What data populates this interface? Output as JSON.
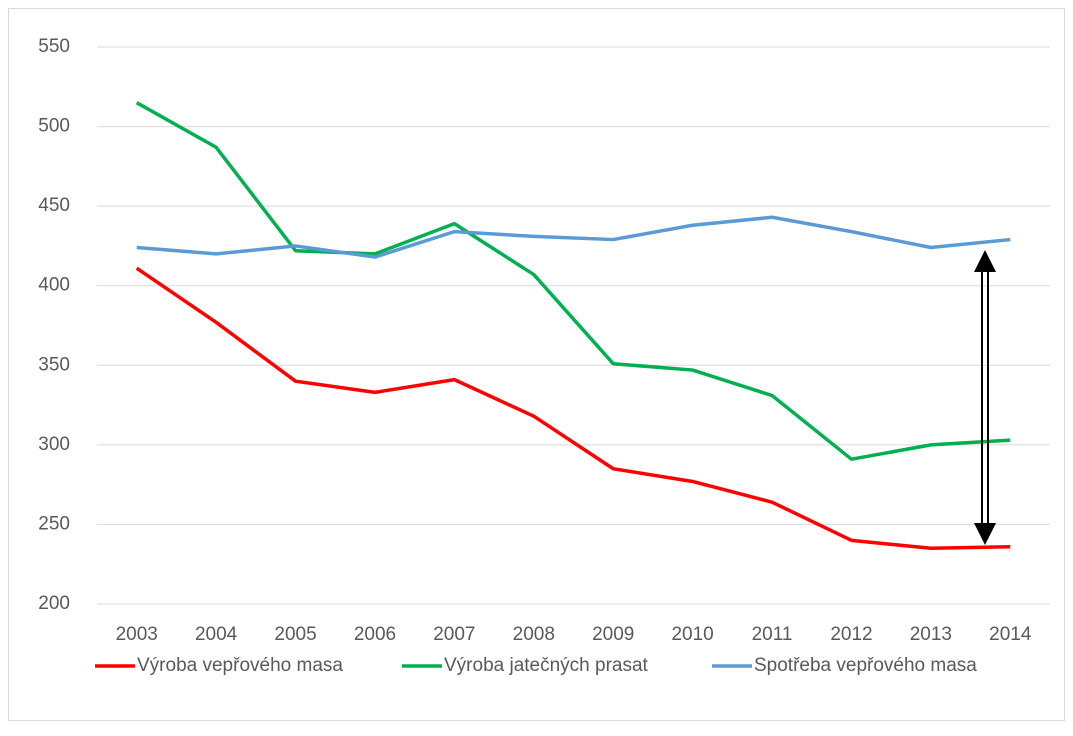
{
  "chart_data": {
    "type": "line",
    "categories": [
      "2003",
      "2004",
      "2005",
      "2006",
      "2007",
      "2008",
      "2009",
      "2010",
      "2011",
      "2012",
      "2013",
      "2014"
    ],
    "series": [
      {
        "name": "Výroba vepřového masa",
        "color": "#ff0000",
        "values": [
          411,
          377,
          340,
          333,
          341,
          318,
          285,
          277,
          264,
          240,
          235,
          236
        ]
      },
      {
        "name": "Výroba jatečných prasat",
        "color": "#00b050",
        "values": [
          515,
          487,
          422,
          420,
          439,
          407,
          351,
          347,
          331,
          291,
          300,
          303
        ]
      },
      {
        "name": "Spotřeba vepřového masa",
        "color": "#5b9bd5",
        "values": [
          424,
          420,
          425,
          418,
          434,
          431,
          429,
          438,
          443,
          434,
          424,
          429
        ]
      }
    ],
    "ylim": [
      200,
      550
    ],
    "yticks": [
      200,
      250,
      300,
      350,
      400,
      450,
      500,
      550
    ],
    "grid": true,
    "legend": "bottom"
  }
}
